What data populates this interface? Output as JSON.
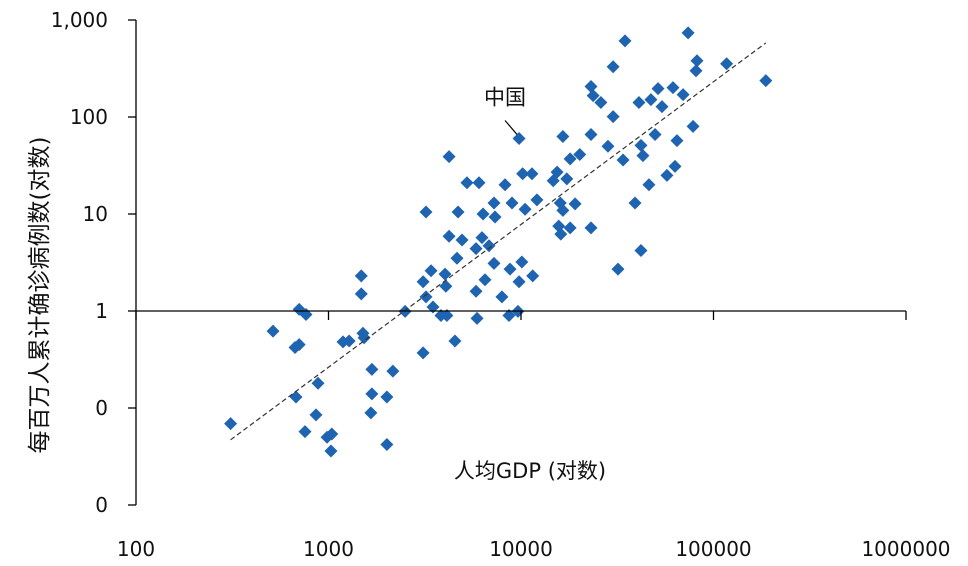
{
  "chart_data": {
    "type": "scatter",
    "title": "",
    "xlabel": "人均GDP (对数)",
    "ylabel": "每百万人累计确诊病例数(对数)",
    "x_scale": "log",
    "y_scale": "log",
    "xlim": [
      100,
      1000000
    ],
    "ylim": [
      0.01,
      1000
    ],
    "x_ticks": [
      {
        "value": 100,
        "label": "100"
      },
      {
        "value": 1000,
        "label": "1000"
      },
      {
        "value": 10000,
        "label": "10000"
      },
      {
        "value": 100000,
        "label": "100000"
      },
      {
        "value": 1000000,
        "label": "1000000"
      }
    ],
    "y_ticks": [
      {
        "value": 0.01,
        "label": "0"
      },
      {
        "value": 0.1,
        "label": "0"
      },
      {
        "value": 1,
        "label": "1"
      },
      {
        "value": 10,
        "label": "10"
      },
      {
        "value": 100,
        "label": "100"
      },
      {
        "value": 1000,
        "label": "1,000"
      }
    ],
    "x_axis_crosses_at_y": 1,
    "grid": false,
    "marker": "diamond",
    "color": "#1f64b0",
    "trendline": {
      "style": "dashed",
      "color": "#333333",
      "from": [
        310,
        0.047
      ],
      "to": [
        187000,
        580
      ]
    },
    "annotation": {
      "text": "中国",
      "point": [
        9770,
        60
      ]
    },
    "points": [
      [
        310,
        0.069
      ],
      [
        515,
        0.62
      ],
      [
        704,
        1.04
      ],
      [
        764,
        0.92
      ],
      [
        670,
        0.42
      ],
      [
        704,
        0.45
      ],
      [
        678,
        0.13
      ],
      [
        882,
        0.18
      ],
      [
        861,
        0.085
      ],
      [
        755,
        0.057
      ],
      [
        983,
        0.05
      ],
      [
        1040,
        0.054
      ],
      [
        1030,
        0.036
      ],
      [
        1190,
        0.48
      ],
      [
        1280,
        0.49
      ],
      [
        1510,
        0.59
      ],
      [
        1530,
        0.53
      ],
      [
        1480,
        2.3
      ],
      [
        1480,
        1.5
      ],
      [
        1680,
        0.25
      ],
      [
        2160,
        0.24
      ],
      [
        1680,
        0.14
      ],
      [
        2010,
        0.13
      ],
      [
        1660,
        0.089
      ],
      [
        2010,
        0.042
      ],
      [
        3100,
        0.37
      ],
      [
        4540,
        0.49
      ],
      [
        73800,
        736
      ],
      [
        34700,
        610
      ],
      [
        82100,
        380
      ],
      [
        81100,
        300
      ],
      [
        117000,
        354
      ],
      [
        187000,
        237
      ],
      [
        30100,
        330
      ],
      [
        23100,
        206
      ],
      [
        23700,
        166
      ],
      [
        26000,
        141
      ],
      [
        30100,
        101
      ],
      [
        41000,
        141
      ],
      [
        47300,
        151
      ],
      [
        51500,
        196
      ],
      [
        54000,
        128
      ],
      [
        61600,
        201
      ],
      [
        69500,
        170
      ],
      [
        78300,
        80
      ],
      [
        49700,
        66
      ],
      [
        64600,
        57
      ],
      [
        42000,
        51
      ],
      [
        43000,
        40
      ],
      [
        33900,
        36
      ],
      [
        28300,
        50
      ],
      [
        23100,
        66
      ],
      [
        16500,
        63
      ],
      [
        9770,
        60
      ],
      [
        4230,
        39
      ],
      [
        20200,
        41
      ],
      [
        18000,
        37
      ],
      [
        15400,
        27
      ],
      [
        11400,
        26
      ],
      [
        10200,
        26
      ],
      [
        14700,
        22
      ],
      [
        17300,
        23
      ],
      [
        8260,
        20
      ],
      [
        5240,
        21
      ],
      [
        6050,
        21
      ],
      [
        63100,
        31
      ],
      [
        57300,
        25
      ],
      [
        46200,
        20
      ],
      [
        39100,
        13
      ],
      [
        19100,
        12.7
      ],
      [
        16000,
        13
      ],
      [
        12100,
        14
      ],
      [
        8980,
        13
      ],
      [
        7240,
        13
      ],
      [
        6350,
        10
      ],
      [
        7330,
        9.3
      ],
      [
        10500,
        11.2
      ],
      [
        4710,
        10.5
      ],
      [
        3210,
        10.5
      ],
      [
        16500,
        10.9
      ],
      [
        15700,
        7.5
      ],
      [
        18000,
        7.2
      ],
      [
        16100,
        6.2
      ],
      [
        23100,
        7.2
      ],
      [
        4230,
        5.9
      ],
      [
        4940,
        5.4
      ],
      [
        6270,
        5.7
      ],
      [
        5840,
        4.4
      ],
      [
        6820,
        4.7
      ],
      [
        4650,
        3.5
      ],
      [
        7240,
        3.1
      ],
      [
        10100,
        3.2
      ],
      [
        8770,
        2.7
      ],
      [
        11500,
        2.3
      ],
      [
        9770,
        2.0
      ],
      [
        6500,
        2.1
      ],
      [
        5840,
        1.6
      ],
      [
        7960,
        1.4
      ],
      [
        3410,
        2.6
      ],
      [
        3100,
        2.0
      ],
      [
        4030,
        2.4
      ],
      [
        4070,
        1.8
      ],
      [
        3210,
        1.4
      ],
      [
        3490,
        1.1
      ],
      [
        3840,
        0.9
      ],
      [
        4120,
        0.9
      ],
      [
        5910,
        0.84
      ],
      [
        8660,
        0.9
      ],
      [
        9640,
        0.99
      ],
      [
        31900,
        2.7
      ],
      [
        42000,
        4.2
      ],
      [
        2500,
        0.99
      ]
    ]
  }
}
